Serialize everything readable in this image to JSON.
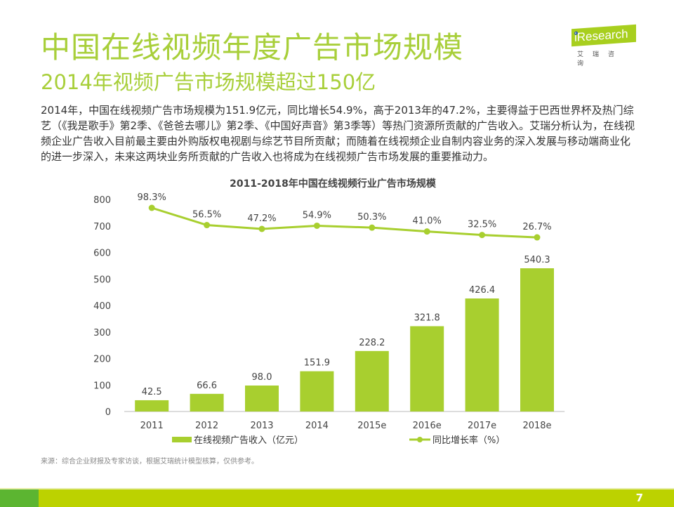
{
  "header": {
    "title": "中国在线视频年度广告市场规模",
    "subtitle": "2014年视频广告市场规模超过150亿",
    "logo_word": "iResearch",
    "logo_cn": "艾瑞咨询"
  },
  "body_text": "2014年，中国在线视频广告市场规模为151.9亿元，同比增长54.9%，高于2013年的47.2%，主要得益于巴西世界杯及热门综艺（《我是歌手》第2季、《爸爸去哪儿》第2季、《中国好声音》第3季等）等热门资源所贡献的广告收入。艾瑞分析认为，在线视频企业广告收入目前最主要由外购版权电视剧与综艺节目所贡献；而随着在线视频企业自制内容业务的深入发展与移动端商业化的进一步深入，未来这两块业务所贡献的广告收入也将成为在线视频广告市场发展的重要推动力。",
  "chart_data": {
    "type": "bar",
    "title": "2011-2018年中国在线视频行业广告市场规模",
    "categories": [
      "2011",
      "2012",
      "2013",
      "2014",
      "2015e",
      "2016e",
      "2017e",
      "2018e"
    ],
    "series": [
      {
        "name": "在线视频广告收入（亿元）",
        "type": "bar",
        "values": [
          42.5,
          66.6,
          98.0,
          151.9,
          228.2,
          321.8,
          426.4,
          540.3
        ],
        "labels": [
          "42.5",
          "66.6",
          "98.0",
          "151.9",
          "228.2",
          "321.8",
          "426.4",
          "540.3"
        ]
      },
      {
        "name": "同比增长率（%）",
        "type": "line",
        "values": [
          98.3,
          56.5,
          47.2,
          54.9,
          50.3,
          41.0,
          32.5,
          26.7
        ],
        "labels": [
          "98.3%",
          "56.5%",
          "47.2%",
          "54.9%",
          "50.3%",
          "41.0%",
          "32.5%",
          "26.7%"
        ]
      }
    ],
    "ylim": [
      0,
      800
    ],
    "yticks": [
      "0",
      "100",
      "200",
      "300",
      "400",
      "500",
      "600",
      "700",
      "800"
    ],
    "legend": "bottom",
    "color": "#a8cf2f"
  },
  "source": "来源：综合企业财报及专家访谈，根据艾瑞统计模型核算，仅供参考。",
  "page_number": "7"
}
